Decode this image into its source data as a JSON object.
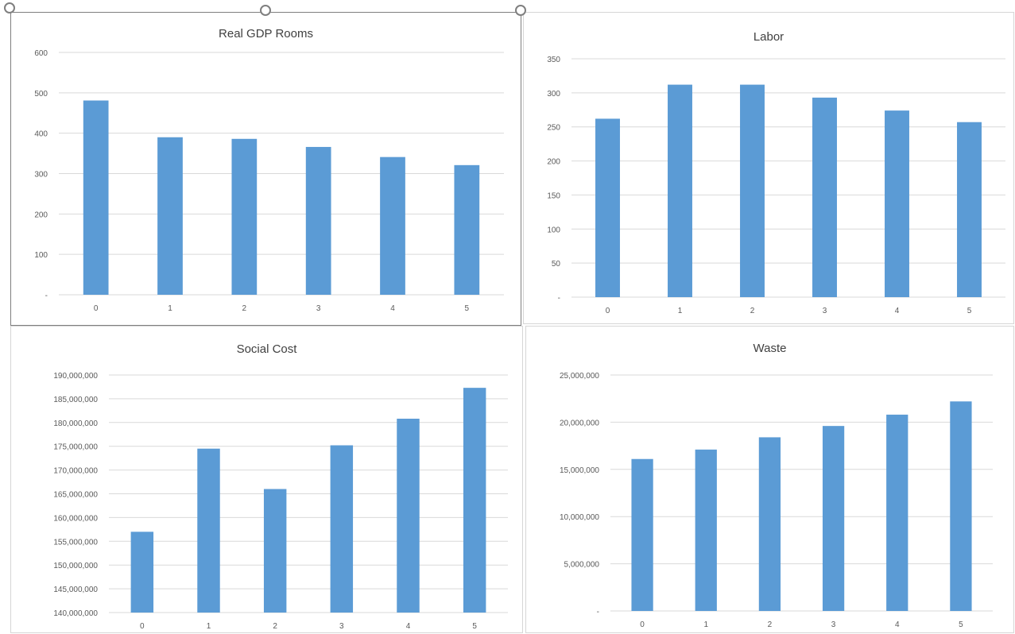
{
  "colors": {
    "bar": "#5b9bd5",
    "grid": "#d9d9d9",
    "tick_text": "#595959",
    "title_text": "#404040"
  },
  "chart_data": [
    {
      "type": "bar",
      "title": "Real GDP Rooms",
      "categories": [
        "0",
        "1",
        "2",
        "3",
        "4",
        "5"
      ],
      "values": [
        481,
        390,
        386,
        366,
        341,
        321
      ],
      "ylim": [
        0,
        600
      ],
      "yticks": [
        0,
        100,
        200,
        300,
        400,
        500,
        600
      ],
      "ytick_labels": [
        "-",
        "100",
        "200",
        "300",
        "400",
        "500",
        "600"
      ],
      "grid": true
    },
    {
      "type": "bar",
      "title": "Labor",
      "categories": [
        "0",
        "1",
        "2",
        "3",
        "4",
        "5"
      ],
      "values": [
        262,
        312,
        312,
        293,
        274,
        257
      ],
      "ylim": [
        0,
        350
      ],
      "yticks": [
        0,
        50,
        100,
        150,
        200,
        250,
        300,
        350
      ],
      "ytick_labels": [
        "-",
        "50",
        "100",
        "150",
        "200",
        "250",
        "300",
        "350"
      ],
      "grid": true
    },
    {
      "type": "bar",
      "title": "Social Cost",
      "categories": [
        "0",
        "1",
        "2",
        "3",
        "4",
        "5"
      ],
      "values": [
        157000000,
        174500000,
        166000000,
        175200000,
        180800000,
        187300000
      ],
      "ylim": [
        140000000,
        190000000
      ],
      "yticks": [
        140000000,
        145000000,
        150000000,
        155000000,
        160000000,
        165000000,
        170000000,
        175000000,
        180000000,
        185000000,
        190000000
      ],
      "ytick_labels": [
        "140,000,000",
        "145,000,000",
        "150,000,000",
        "155,000,000",
        "160,000,000",
        "165,000,000",
        "170,000,000",
        "175,000,000",
        "180,000,000",
        "185,000,000",
        "190,000,000"
      ],
      "grid": true
    },
    {
      "type": "bar",
      "title": "Waste",
      "categories": [
        "0",
        "1",
        "2",
        "3",
        "4",
        "5"
      ],
      "values": [
        16100000,
        17100000,
        18400000,
        19600000,
        20800000,
        22200000
      ],
      "ylim": [
        0,
        25000000
      ],
      "yticks": [
        0,
        5000000,
        10000000,
        15000000,
        20000000,
        25000000
      ],
      "ytick_labels": [
        "-",
        "5,000,000",
        "10,000,000",
        "15,000,000",
        "20,000,000",
        "25,000,000"
      ],
      "grid": true
    }
  ]
}
